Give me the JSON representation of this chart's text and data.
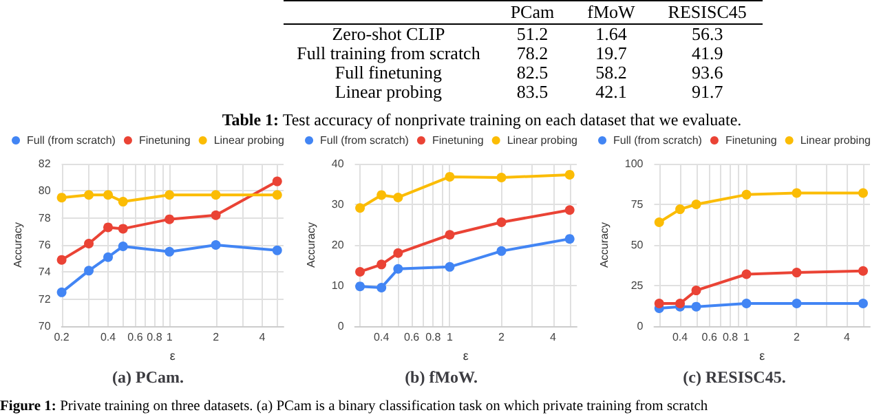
{
  "chart_data": [
    {
      "type": "other",
      "categories": [
        "PCam",
        "fMoW",
        "RESISC45"
      ],
      "y_categories": [
        "Zero-shot CLIP",
        "Full training from scratch",
        "Full finetuning",
        "Linear probing"
      ],
      "cells": [
        [
          "51.2",
          "1.64",
          "56.3"
        ],
        [
          "78.2",
          "19.7",
          "41.9"
        ],
        [
          "82.5",
          "58.2",
          "93.6"
        ],
        [
          "83.5",
          "42.1",
          "91.7"
        ]
      ],
      "annotations": [
        "Table 1: Test accuracy of nonprivate training on each dataset that we evaluate.",
        "Figure 1: Private training on three datasets. (a) PCam is a binary classification task on which private training from scratch"
      ]
    },
    {
      "type": "line",
      "title": "(a) PCam.",
      "xlabel": "ε",
      "ylabel": "Accuracy",
      "x": [
        0.2,
        0.3,
        0.4,
        0.5,
        1,
        2,
        5
      ],
      "xlim": [
        0.2,
        5.5
      ],
      "xticks": [
        0.2,
        {
          "value": 0.3,
          "label": null
        },
        0.4,
        {
          "value": 0.5,
          "label": null
        },
        0.6,
        {
          "value": 0.7,
          "label": null
        },
        0.8,
        {
          "value": 0.9,
          "label": null
        },
        1,
        2,
        {
          "value": 3,
          "label": null
        },
        4,
        {
          "value": 5,
          "label": null
        }
      ],
      "ylim": [
        70,
        82
      ],
      "yticks": [
        70,
        72,
        74,
        76,
        78,
        80,
        82
      ],
      "log": "x",
      "grid": true,
      "legend": "top",
      "marker": "circle",
      "line_style": "solid",
      "series": [
        {
          "name": "Full (from scratch)",
          "color": "#4285f4",
          "values": [
            72.5,
            74.1,
            75.1,
            75.9,
            75.5,
            76.0,
            75.6
          ]
        },
        {
          "name": "Finetuning",
          "color": "#ea4335",
          "values": [
            74.9,
            76.1,
            77.3,
            77.2,
            77.9,
            78.2,
            80.7
          ]
        },
        {
          "name": "Linear probing",
          "color": "#fbbc04",
          "values": [
            79.5,
            79.7,
            79.7,
            79.2,
            79.7,
            79.7,
            79.7
          ]
        }
      ]
    },
    {
      "type": "line",
      "title": "(b) fMoW.",
      "xlabel": "ε",
      "ylabel": "Accuracy",
      "x": [
        0.3,
        0.4,
        0.5,
        1,
        2,
        5
      ],
      "xlim": [
        0.28,
        5.5
      ],
      "xticks": [
        {
          "value": 0.3,
          "label": null
        },
        0.4,
        {
          "value": 0.5,
          "label": null
        },
        0.6,
        {
          "value": 0.7,
          "label": null
        },
        0.8,
        {
          "value": 0.9,
          "label": null
        },
        1,
        2,
        {
          "value": 3,
          "label": null
        },
        4,
        {
          "value": 5,
          "label": null
        }
      ],
      "ylim": [
        0,
        40
      ],
      "yticks": [
        0,
        10,
        20,
        30,
        40
      ],
      "log": "x",
      "grid": true,
      "legend": "top",
      "marker": "circle",
      "line_style": "solid",
      "series": [
        {
          "name": "Full (from scratch)",
          "color": "#4285f4",
          "values": [
            9.8,
            9.5,
            14.1,
            14.6,
            18.5,
            21.5
          ]
        },
        {
          "name": "Finetuning",
          "color": "#ea4335",
          "values": [
            13.4,
            15.2,
            18.0,
            22.5,
            25.6,
            28.6
          ]
        },
        {
          "name": "Linear probing",
          "color": "#fbbc04",
          "values": [
            29.1,
            32.3,
            31.7,
            36.8,
            36.6,
            37.3
          ]
        }
      ]
    },
    {
      "type": "line",
      "title": "(c) RESISC45.",
      "xlabel": "ε",
      "ylabel": "Accuracy",
      "x": [
        0.3,
        0.4,
        0.5,
        1,
        2,
        5
      ],
      "xlim": [
        0.28,
        5.5
      ],
      "xticks": [
        {
          "value": 0.3,
          "label": null
        },
        0.4,
        {
          "value": 0.5,
          "label": null
        },
        0.6,
        {
          "value": 0.7,
          "label": null
        },
        0.8,
        {
          "value": 0.9,
          "label": null
        },
        1,
        2,
        {
          "value": 3,
          "label": null
        },
        4,
        {
          "value": 5,
          "label": null
        }
      ],
      "ylim": [
        0,
        100
      ],
      "yticks": [
        0,
        25,
        50,
        75,
        100
      ],
      "log": "x",
      "grid": true,
      "legend": "top",
      "marker": "circle",
      "line_style": "solid",
      "series": [
        {
          "name": "Full (from scratch)",
          "color": "#4285f4",
          "values": [
            11,
            12,
            12,
            14,
            14,
            14
          ]
        },
        {
          "name": "Finetuning",
          "color": "#ea4335",
          "values": [
            14,
            14,
            22,
            32,
            33,
            34
          ]
        },
        {
          "name": "Linear probing",
          "color": "#fbbc04",
          "values": [
            64,
            72,
            75,
            81,
            82,
            82
          ]
        }
      ]
    }
  ]
}
